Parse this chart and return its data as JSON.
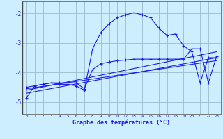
{
  "background_color": "#cceeff",
  "grid_color": "#99bbcc",
  "line_color": "#1a1aee",
  "xlabel": "Graphe des températures (°C)",
  "xlim": [
    -0.5,
    23.5
  ],
  "ylim": [
    -5.4,
    -1.6
  ],
  "yticks": [
    -5,
    -4,
    -3,
    -2
  ],
  "xticks": [
    0,
    1,
    2,
    3,
    4,
    5,
    6,
    7,
    8,
    9,
    10,
    11,
    12,
    13,
    14,
    15,
    16,
    17,
    18,
    19,
    20,
    21,
    22,
    23
  ],
  "curve1_x": [
    0,
    1,
    2,
    3,
    4,
    5,
    6,
    7,
    8,
    9,
    10,
    11,
    12,
    13,
    14,
    15,
    16,
    17,
    18,
    19,
    20,
    21,
    22,
    23
  ],
  "curve1_y": [
    -4.85,
    -4.45,
    -4.4,
    -4.35,
    -4.4,
    -4.4,
    -4.45,
    -4.6,
    -3.2,
    -2.65,
    -2.35,
    -2.15,
    -2.05,
    -1.98,
    -2.05,
    -2.15,
    -2.5,
    -2.75,
    -2.7,
    -3.1,
    -3.3,
    -4.35,
    -3.5,
    -3.5
  ],
  "curve2_x": [
    0,
    3,
    4,
    5,
    6,
    7,
    8,
    9,
    10,
    11,
    12,
    13,
    14,
    15,
    16,
    17,
    18,
    19,
    20,
    21,
    22,
    23
  ],
  "curve2_y": [
    -4.5,
    -4.35,
    -4.35,
    -4.35,
    -4.35,
    -4.55,
    -3.9,
    -3.7,
    -3.65,
    -3.6,
    -3.58,
    -3.55,
    -3.55,
    -3.55,
    -3.55,
    -3.55,
    -3.55,
    -3.55,
    -3.2,
    -3.2,
    -4.35,
    -3.45
  ],
  "line1_x": [
    0,
    23
  ],
  "line1_y": [
    -4.6,
    -3.3
  ],
  "line2_x": [
    0,
    23
  ],
  "line2_y": [
    -4.7,
    -3.5
  ],
  "line3_x": [
    0,
    23
  ],
  "line3_y": [
    -4.55,
    -3.6
  ]
}
